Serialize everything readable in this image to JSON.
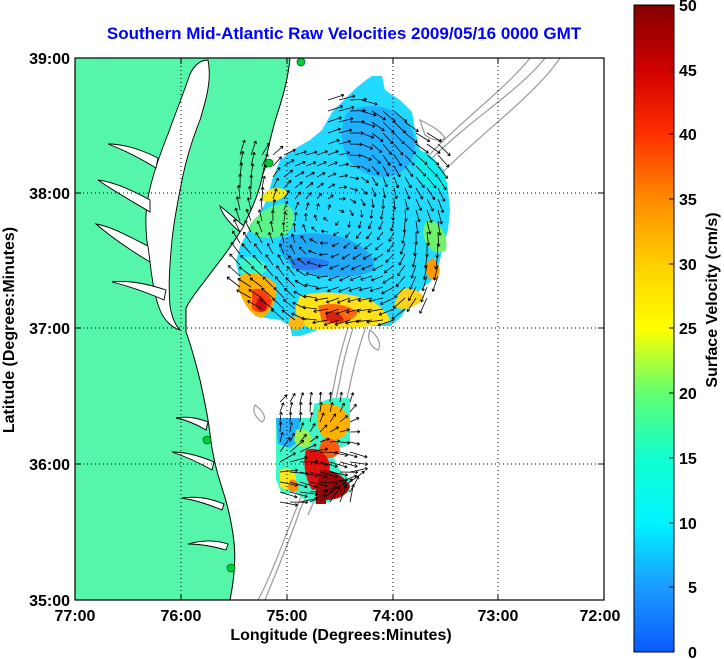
{
  "title": "Southern Mid-Atlantic Raw Velocities 2009/05/16 0000 GMT",
  "x_axis_label": "Longitude (Degrees:Minutes)",
  "y_axis_label": "Latitude (Degrees:Minutes)",
  "x_ticks": [
    "77:00",
    "76:00",
    "75:00",
    "74:00",
    "73:00",
    "72:00"
  ],
  "y_ticks": [
    "39:00",
    "38:00",
    "37:00",
    "36:00",
    "35:00"
  ],
  "colorbar": {
    "label": "Surface Velocity (cm/s)",
    "ticks": [
      "50",
      "45",
      "40",
      "35",
      "30",
      "25",
      "20",
      "15",
      "10",
      "5",
      "0"
    ],
    "range": [
      0,
      50
    ]
  },
  "colors": {
    "title": "#0000ff",
    "land": "#55f5aa",
    "ocean": "#ffffff",
    "bathymetry": "#9a9a9a",
    "station": "#00cc33"
  },
  "map_extent": {
    "lon": [
      -77,
      -72
    ],
    "lat": [
      35,
      39
    ]
  },
  "chart_data": {
    "type": "heatmap",
    "title": "Southern Mid-Atlantic Raw Velocities 2009/05/16 0000 GMT",
    "xlabel": "Longitude (Degrees:Minutes)",
    "ylabel": "Latitude (Degrees:Minutes)",
    "xlim": [
      -77,
      -72
    ],
    "ylim": [
      35,
      39
    ],
    "grid": true,
    "colorbar_label": "Surface Velocity (cm/s)",
    "clim": [
      0,
      50
    ],
    "stations": [
      {
        "lon": -75.06,
        "lat": 38.93
      },
      {
        "lon": -75.13,
        "lat": 38.23
      },
      {
        "lon": -75.68,
        "lat": 36.18
      },
      {
        "lon": -75.48,
        "lat": 35.28
      }
    ]
  }
}
